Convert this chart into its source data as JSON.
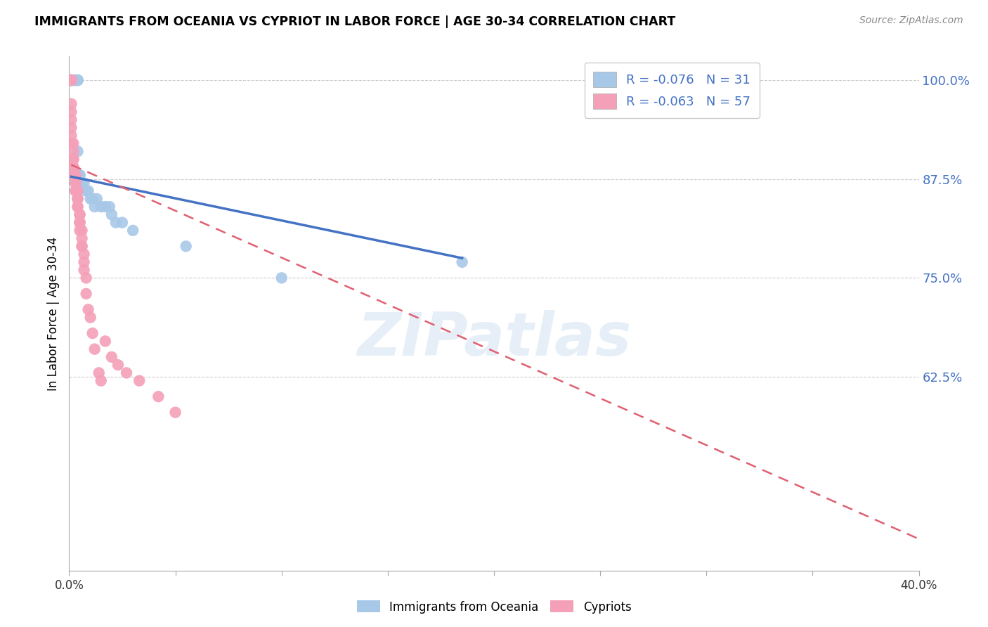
{
  "title": "IMMIGRANTS FROM OCEANIA VS CYPRIOT IN LABOR FORCE | AGE 30-34 CORRELATION CHART",
  "source": "Source: ZipAtlas.com",
  "ylabel": "In Labor Force | Age 30-34",
  "xlim": [
    0.0,
    0.4
  ],
  "ylim": [
    0.38,
    1.03
  ],
  "yticks": [
    0.625,
    0.75,
    0.875,
    1.0
  ],
  "ytick_labels": [
    "62.5%",
    "75.0%",
    "87.5%",
    "100.0%"
  ],
  "xticks": [
    0.0,
    0.05,
    0.1,
    0.15,
    0.2,
    0.25,
    0.3,
    0.35,
    0.4
  ],
  "xtick_labels": [
    "0.0%",
    "",
    "",
    "",
    "",
    "",
    "",
    "",
    "40.0%"
  ],
  "oceania_R": "-0.076",
  "oceania_N": "31",
  "cypriot_R": "-0.063",
  "cypriot_N": "57",
  "oceania_color": "#a8c8e8",
  "cypriot_color": "#f4a0b8",
  "trendline_oceania_color": "#4472c4",
  "trendline_cypriot_color": "#e06070",
  "legend_label_oceania": "Immigrants from Oceania",
  "legend_label_cypriot": "Cypriots",
  "watermark": "ZIPatlas",
  "background_color": "#ffffff",
  "grid_color": "#cccccc",
  "oceania_x": [
    0.001,
    0.001,
    0.001,
    0.002,
    0.002,
    0.003,
    0.003,
    0.004,
    0.004,
    0.004,
    0.004,
    0.005,
    0.005,
    0.006,
    0.007,
    0.008,
    0.009,
    0.01,
    0.011,
    0.012,
    0.013,
    0.015,
    0.017,
    0.019,
    0.02,
    0.022,
    0.025,
    0.03,
    0.055,
    0.1,
    0.185
  ],
  "oceania_y": [
    1.0,
    1.0,
    1.0,
    1.0,
    1.0,
    1.0,
    1.0,
    1.0,
    1.0,
    1.0,
    0.91,
    0.88,
    0.88,
    0.87,
    0.87,
    0.86,
    0.86,
    0.85,
    0.85,
    0.84,
    0.85,
    0.84,
    0.84,
    0.84,
    0.83,
    0.82,
    0.82,
    0.81,
    0.79,
    0.75,
    0.77
  ],
  "cypriot_x": [
    0.001,
    0.001,
    0.001,
    0.001,
    0.001,
    0.001,
    0.001,
    0.001,
    0.001,
    0.002,
    0.002,
    0.002,
    0.002,
    0.002,
    0.002,
    0.002,
    0.003,
    0.003,
    0.003,
    0.003,
    0.003,
    0.003,
    0.003,
    0.004,
    0.004,
    0.004,
    0.004,
    0.004,
    0.004,
    0.005,
    0.005,
    0.005,
    0.005,
    0.005,
    0.005,
    0.006,
    0.006,
    0.006,
    0.006,
    0.007,
    0.007,
    0.007,
    0.008,
    0.008,
    0.009,
    0.01,
    0.011,
    0.012,
    0.014,
    0.015,
    0.017,
    0.02,
    0.023,
    0.027,
    0.033,
    0.042,
    0.05
  ],
  "cypriot_y": [
    1.0,
    1.0,
    1.0,
    0.97,
    0.96,
    0.95,
    0.94,
    0.93,
    0.92,
    0.92,
    0.91,
    0.9,
    0.9,
    0.89,
    0.89,
    0.88,
    0.88,
    0.88,
    0.87,
    0.87,
    0.87,
    0.86,
    0.86,
    0.86,
    0.85,
    0.85,
    0.85,
    0.84,
    0.84,
    0.83,
    0.83,
    0.82,
    0.82,
    0.82,
    0.81,
    0.81,
    0.8,
    0.79,
    0.79,
    0.78,
    0.77,
    0.76,
    0.75,
    0.73,
    0.71,
    0.7,
    0.68,
    0.66,
    0.63,
    0.62,
    0.67,
    0.65,
    0.64,
    0.63,
    0.62,
    0.6,
    0.58
  ],
  "oceania_trendline_x": [
    0.001,
    0.185
  ],
  "oceania_trendline_y": [
    0.878,
    0.775
  ],
  "cypriot_trendline_x": [
    0.001,
    0.4
  ],
  "cypriot_trendline_y": [
    0.893,
    0.42
  ]
}
